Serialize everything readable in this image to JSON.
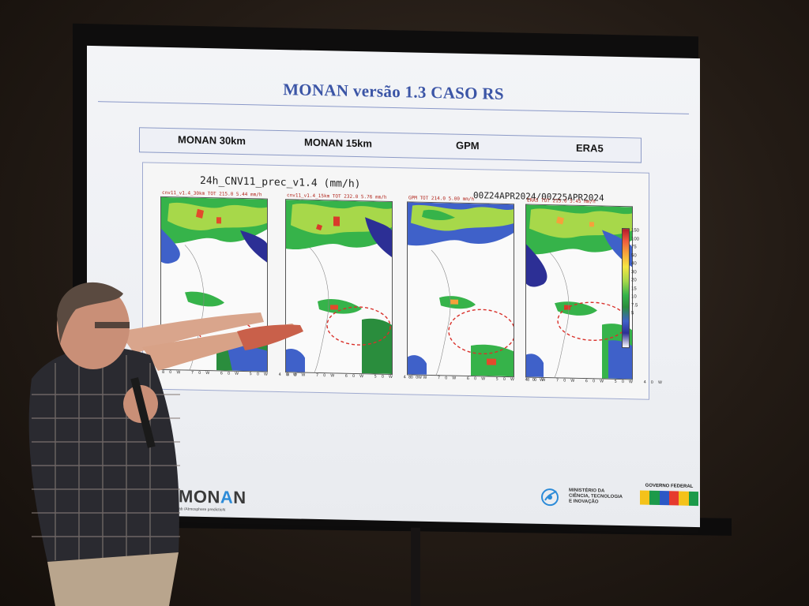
{
  "slide": {
    "title": "MONAN versão 1.3   CASO RS",
    "columns": [
      "MONAN 30km",
      "MONAN 15km",
      "GPM",
      "ERA5"
    ],
    "figure_title": "24h_CNV11_prec_v1.4 (mm/h)",
    "figure_date": "00Z24APR2024/00Z25APR2024",
    "panel_labels": [
      "cnv11_v1.4_30km TOT  215.0 5.44 mm/h",
      "cnv11_v1.4_15km TOT  232.0 5.76 mm/h",
      "GPM TOT  214.0 5.00 mm/h",
      "ERA5 TOT  215.0 5.45 mm/h"
    ],
    "lon_labels": "80W 70W 60W 50W 40W",
    "colorbar_values": [
      "150",
      "100",
      "75",
      "50",
      "40",
      "30",
      "20",
      "15",
      "10",
      "7.5",
      "5"
    ],
    "logo_monan_main": "M",
    "logo_monan_a": "A",
    "logo_monan_end": "N",
    "logo_monan_sub": "ab /Atmosphere predictioN",
    "ministry_line1": "MINISTÉRIO DA",
    "ministry_line2": "CIÊNCIA, TECNOLOGIA",
    "ministry_line3": "E INOVAÇÃO",
    "gov_label": "GOVERNO FEDERAL",
    "gov_flag_text": "BRASIL"
  },
  "colors": {
    "title": "#3b55a6",
    "precip_high": "#b2182b",
    "precip_mid": "#36b34a",
    "precip_low": "#2c2f95",
    "highlight_circle": "#d9302a"
  }
}
